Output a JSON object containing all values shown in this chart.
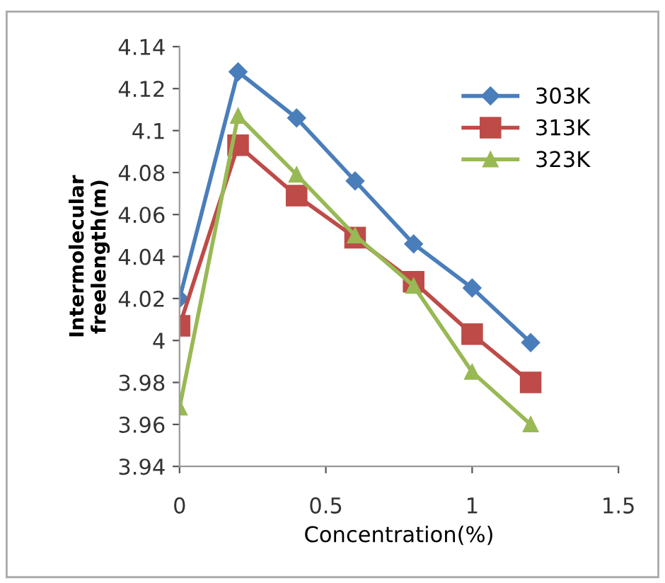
{
  "chart_data": {
    "type": "line",
    "xlabel": "Concentration(%)",
    "ylabel": "Intermolecular\nfreelength(m)",
    "x": [
      0,
      0.2,
      0.4,
      0.6,
      0.8,
      1.0,
      1.2
    ],
    "series": [
      {
        "name": "303K",
        "color": "#4a7ebb",
        "marker": "diamond",
        "values": [
          4.02,
          4.128,
          4.106,
          4.076,
          4.046,
          4.025,
          3.999
        ]
      },
      {
        "name": "313K",
        "color": "#be4b48",
        "marker": "square",
        "values": [
          4.007,
          4.093,
          4.069,
          4.049,
          4.028,
          4.003,
          3.98
        ]
      },
      {
        "name": "323K",
        "color": "#98b954",
        "marker": "triangle",
        "values": [
          3.968,
          4.107,
          4.079,
          4.05,
          4.026,
          3.985,
          3.96
        ]
      }
    ],
    "xlim": [
      0,
      1.5
    ],
    "xticks": [
      0,
      0.5,
      1,
      1.5
    ],
    "ylim": [
      3.94,
      4.14
    ],
    "yticks": [
      3.94,
      3.96,
      3.98,
      4,
      4.02,
      4.04,
      4.06,
      4.08,
      4.1,
      4.12,
      4.14
    ],
    "grid": false,
    "legend": "top right",
    "line_style": "solid"
  }
}
